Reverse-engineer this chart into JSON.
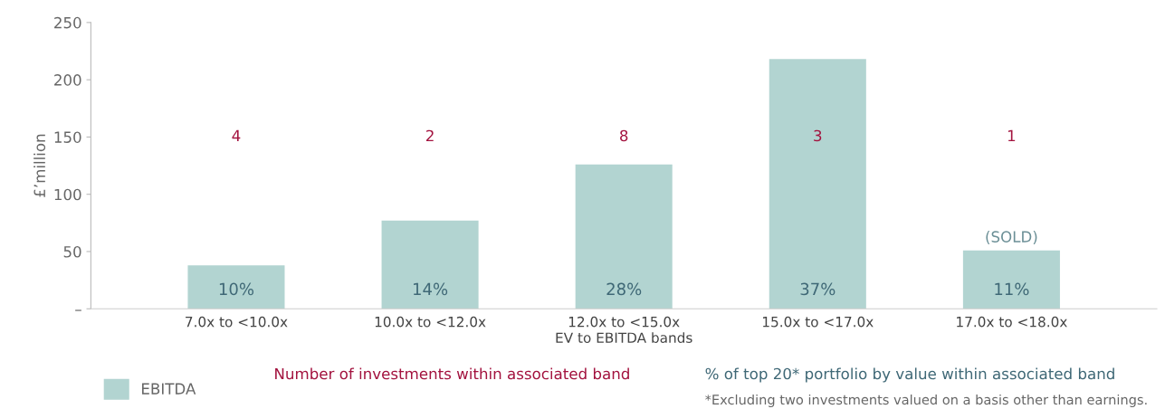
{
  "chart_data": {
    "type": "bar",
    "xlabel": "EV to EBITDA bands",
    "ylabel": "£’million",
    "categories": [
      "7.0x to <10.0x",
      "10.0x to <12.0x",
      "12.0x to <15.0x",
      "15.0x to <17.0x",
      "17.0x to <18.0x"
    ],
    "series": [
      {
        "name": "EBITDA",
        "color": "#b2d4d1",
        "values": [
          38,
          77,
          126,
          218,
          51
        ]
      }
    ],
    "ylim": [
      0,
      250
    ],
    "yticks": [
      {
        "value": 0,
        "label": "–"
      },
      50,
      100,
      150,
      200,
      250
    ],
    "grid": false,
    "legend": "bottom left",
    "annotations": [
      "4",
      "2",
      "8",
      "3",
      "1",
      "10%",
      "14%",
      "28%",
      "37%",
      "11%",
      {
        "text": "(SOLD)",
        "x": "17.0x to <18.0x",
        "y": 51
      },
      "Number of investments within associated band",
      "% of top 20* portfolio by value within associated band",
      "*Excluding two investments valued on a basis other than earnings."
    ]
  }
}
